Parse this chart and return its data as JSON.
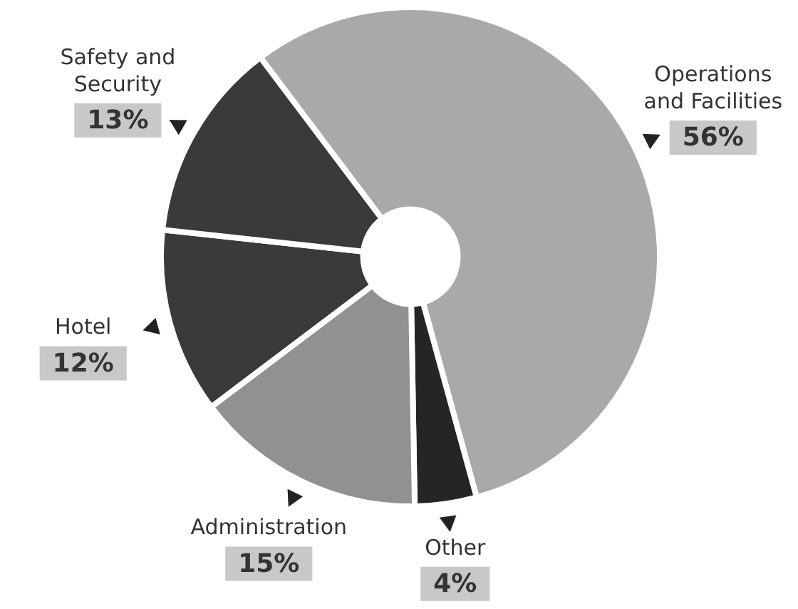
{
  "chart_data": {
    "type": "donut",
    "categories": [
      "Operations and Facilities",
      "Other",
      "Administration",
      "Hotel",
      "Safety and Security"
    ],
    "values": [
      56,
      4,
      15,
      12,
      13
    ],
    "colors": [
      "#a9a9a9",
      "#252525",
      "#919191",
      "#3a3a3a",
      "#3a3a3a"
    ],
    "value_labels": [
      "56%",
      "4%",
      "15%",
      "12%",
      "13%"
    ],
    "legend": false
  }
}
